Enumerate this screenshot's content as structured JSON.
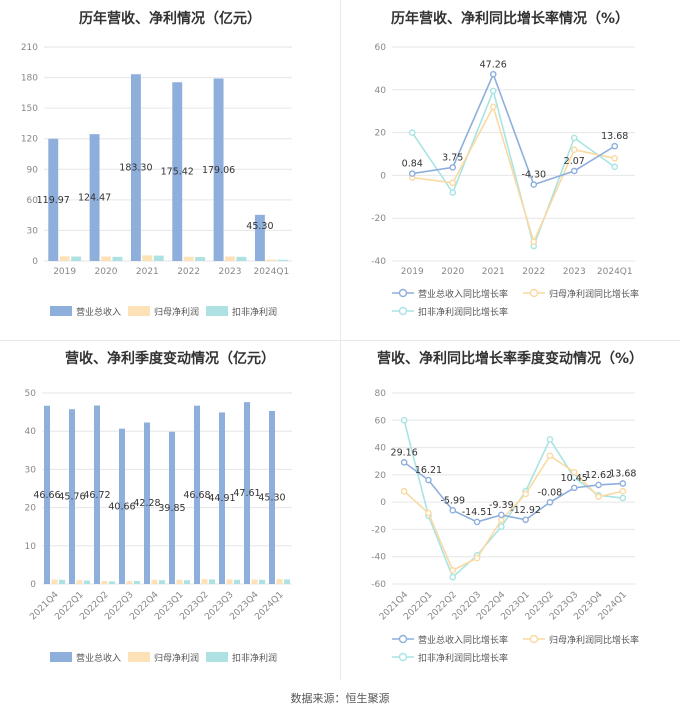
{
  "source": "数据来源：恒生聚源",
  "colors": {
    "revenue": "#8eaedc",
    "net": "#fde2b8",
    "deduct": "#aee2e2",
    "revenue_line": "#8eaedc",
    "net_line": "#fad9a2",
    "deduct_line": "#a8e4e4"
  },
  "chart_data": [
    {
      "type": "bar",
      "title": "历年营收、净利情况（亿元）",
      "categories": [
        "2019",
        "2020",
        "2021",
        "2022",
        "2023",
        "2024Q1"
      ],
      "ylim": [
        0,
        210
      ],
      "yticks": [
        0,
        30,
        60,
        90,
        120,
        150,
        180,
        210
      ],
      "series": [
        {
          "name": "营业总收入",
          "values": [
            119.97,
            124.47,
            183.3,
            175.42,
            179.06,
            45.3
          ],
          "labels": [
            "119.97",
            "124.47",
            "183.30",
            "175.42",
            "179.06",
            "45.30"
          ]
        },
        {
          "name": "归母净利润",
          "values": [
            4.6,
            4.4,
            5.6,
            4.2,
            4.4,
            1.3
          ]
        },
        {
          "name": "扣非净利润",
          "values": [
            4.4,
            4.1,
            5.3,
            3.9,
            4.1,
            1.2
          ]
        }
      ],
      "legend": "bottom"
    },
    {
      "type": "line",
      "title": "历年营收、净利同比增长率情况（%）",
      "categories": [
        "2019",
        "2020",
        "2021",
        "2022",
        "2023",
        "2024Q1"
      ],
      "ylim": [
        -40,
        60
      ],
      "yticks": [
        -40,
        -20,
        0,
        20,
        40,
        60
      ],
      "series": [
        {
          "name": "营业总收入同比增长率",
          "values": [
            0.84,
            3.75,
            47.26,
            -4.3,
            2.07,
            13.68
          ],
          "labels": [
            "0.84",
            "3.75",
            "47.26",
            "-4.30",
            "2.07",
            "13.68"
          ]
        },
        {
          "name": "归母净利润同比增长率",
          "values": [
            -1.0,
            -3.5,
            32,
            -31,
            12,
            8
          ]
        },
        {
          "name": "扣非净利润同比增长率",
          "values": [
            20,
            -8,
            39.5,
            -33,
            17.5,
            4
          ]
        }
      ],
      "legend": "bottom"
    },
    {
      "type": "bar",
      "title": "营收、净利季度变动情况（亿元）",
      "categories": [
        "2021Q4",
        "2022Q1",
        "2022Q2",
        "2022Q3",
        "2022Q4",
        "2023Q1",
        "2023Q2",
        "2023Q3",
        "2023Q4",
        "2024Q1"
      ],
      "ylim": [
        0,
        50
      ],
      "yticks": [
        0,
        10,
        20,
        30,
        40,
        50
      ],
      "series": [
        {
          "name": "营业总收入",
          "values": [
            46.66,
            45.76,
            46.72,
            40.66,
            42.28,
            39.85,
            46.68,
            44.91,
            47.61,
            45.3
          ],
          "labels": [
            "46.66",
            "45.76",
            "46.72",
            "40.66",
            "42.28",
            "39.85",
            "46.68",
            "44.91",
            "47.61",
            "45.30"
          ]
        },
        {
          "name": "归母净利润",
          "values": [
            1.2,
            1.0,
            0.8,
            0.8,
            1.1,
            1.1,
            1.3,
            1.2,
            1.2,
            1.3
          ]
        },
        {
          "name": "扣非净利润",
          "values": [
            1.1,
            0.9,
            0.7,
            0.8,
            1.0,
            1.0,
            1.2,
            1.1,
            1.1,
            1.2
          ]
        }
      ],
      "legend": "bottom"
    },
    {
      "type": "line",
      "title": "营收、净利同比增长率季度变动情况（%）",
      "categories": [
        "2021Q4",
        "2022Q1",
        "2022Q2",
        "2022Q3",
        "2022Q4",
        "2023Q1",
        "2023Q2",
        "2023Q3",
        "2023Q4",
        "2024Q1"
      ],
      "ylim": [
        -60,
        80
      ],
      "yticks": [
        -60,
        -40,
        -20,
        0,
        20,
        40,
        60,
        80
      ],
      "series": [
        {
          "name": "营业总收入同比增长率",
          "values": [
            29.16,
            16.21,
            -5.99,
            -14.51,
            -9.39,
            -12.92,
            -0.08,
            10.45,
            12.62,
            13.68
          ],
          "labels": [
            "29.16",
            "16.21",
            "-5.99",
            "-14.51",
            "-9.39",
            "-12.92",
            "-0.08",
            "10.45",
            "12.62",
            "13.68"
          ]
        },
        {
          "name": "归母净利润同比增长率",
          "values": [
            8,
            -8,
            -50,
            -41,
            -13,
            6,
            34,
            22,
            4,
            8
          ]
        },
        {
          "name": "扣非净利润同比增长率",
          "values": [
            60,
            -10,
            -55,
            -39,
            -18,
            8,
            46,
            18,
            5,
            3
          ]
        }
      ],
      "legend": "bottom"
    }
  ]
}
